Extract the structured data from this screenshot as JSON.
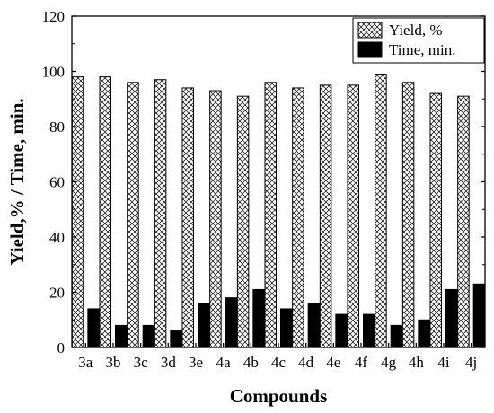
{
  "chart_data": {
    "type": "bar",
    "xlabel": "Compounds",
    "ylabel": "Yield,% / Time, min.",
    "ylim": [
      0,
      120
    ],
    "yticks": [
      0,
      20,
      40,
      60,
      80,
      100,
      120
    ],
    "grid": false,
    "legend_position": "top-right",
    "categories": [
      "3a",
      "3b",
      "3c",
      "3d",
      "3e",
      "4a",
      "4b",
      "4c",
      "4d",
      "4e",
      "4f",
      "4g",
      "4h",
      "4i",
      "4j"
    ],
    "series": [
      {
        "name": "Yield, %",
        "fill": "crosshatch",
        "color": "#000000",
        "values": [
          98,
          98,
          96,
          97,
          94,
          93,
          91,
          96,
          94,
          95,
          95,
          99,
          96,
          92,
          91
        ]
      },
      {
        "name": "Time, min.",
        "fill": "solid",
        "color": "#000000",
        "values": [
          14,
          8,
          8,
          6,
          16,
          18,
          21,
          14,
          16,
          12,
          12,
          8,
          10,
          21,
          23
        ]
      }
    ]
  }
}
